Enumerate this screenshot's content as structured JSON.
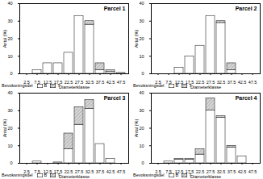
{
  "chart_data": [
    {
      "type": "bar",
      "stacked": true,
      "title": "Parcel 1",
      "xlabel": "Diameterklasse",
      "ylabel": "Antal (%)",
      "legend": "bottom-left",
      "legend_title": "Bevoksningsdel",
      "categories": [
        2.5,
        7.5,
        12.5,
        17.5,
        22.5,
        27.5,
        32.5,
        37.5,
        42.5,
        47.5
      ],
      "series": [
        {
          "name": "B",
          "color": "#ffffff",
          "values": [
            0,
            2,
            6,
            6,
            12,
            33,
            28,
            2,
            1,
            0.5
          ]
        },
        {
          "name": "T",
          "color": "#999999",
          "values": [
            0,
            0,
            0,
            0,
            0,
            0,
            2,
            4,
            1,
            0
          ]
        }
      ],
      "ylim": [
        0,
        40
      ],
      "yticks": [
        0,
        10,
        20,
        30,
        40
      ]
    },
    {
      "type": "bar",
      "stacked": true,
      "title": "Parcel 2",
      "xlabel": "Diameterklasse",
      "ylabel": "Antal (%)",
      "legend": "bottom-left",
      "legend_title": "Bevoksningsdel",
      "categories": [
        2.5,
        7.5,
        12.5,
        17.5,
        22.5,
        27.5,
        32.5,
        37.5,
        42.5,
        47.5
      ],
      "series": [
        {
          "name": "B",
          "color": "#ffffff",
          "values": [
            0,
            0,
            3.5,
            10,
            16,
            33,
            29,
            2,
            0,
            0
          ]
        },
        {
          "name": "T",
          "color": "#999999",
          "values": [
            0,
            0,
            0,
            0,
            0,
            0,
            1,
            4,
            0,
            0
          ]
        }
      ],
      "ylim": [
        0,
        40
      ],
      "yticks": [
        0,
        10,
        20,
        30,
        40
      ]
    },
    {
      "type": "bar",
      "stacked": true,
      "title": "Parcel 3",
      "xlabel": "Diameterklasse",
      "ylabel": "Antal (%)",
      "legend": "bottom-left",
      "legend_title": "Bevoksningsdel",
      "categories": [
        2.5,
        7.5,
        12.5,
        17.5,
        22.5,
        27.5,
        32.5,
        37.5,
        42.5,
        47.5
      ],
      "series": [
        {
          "name": "B",
          "color": "#ffffff",
          "values": [
            0,
            1,
            0,
            0.5,
            8,
            22,
            31,
            11,
            2.5,
            0
          ]
        },
        {
          "name": "T",
          "color": "#999999",
          "values": [
            0,
            0,
            0,
            0,
            9,
            10,
            5,
            0,
            0,
            0
          ]
        }
      ],
      "ylim": [
        0,
        40
      ],
      "yticks": [
        0,
        10,
        20,
        30,
        40
      ]
    },
    {
      "type": "bar",
      "stacked": true,
      "title": "Parcel 4",
      "xlabel": "Diameterklasse",
      "ylabel": "Antal (%)",
      "legend": "bottom-left",
      "legend_title": "Bevoksningsdel",
      "categories": [
        2.5,
        7.5,
        12.5,
        17.5,
        22.5,
        27.5,
        32.5,
        37.5,
        42.5,
        47.5
      ],
      "series": [
        {
          "name": "B",
          "color": "#ffffff",
          "values": [
            0,
            1,
            2,
            2,
            5,
            30,
            26,
            9,
            4,
            0
          ]
        },
        {
          "name": "T",
          "color": "#999999",
          "values": [
            0,
            0,
            0.5,
            0.5,
            3,
            7,
            1,
            1,
            0,
            0
          ]
        }
      ],
      "ylim": [
        0,
        40
      ],
      "yticks": [
        0,
        10,
        20,
        30,
        40
      ]
    }
  ]
}
